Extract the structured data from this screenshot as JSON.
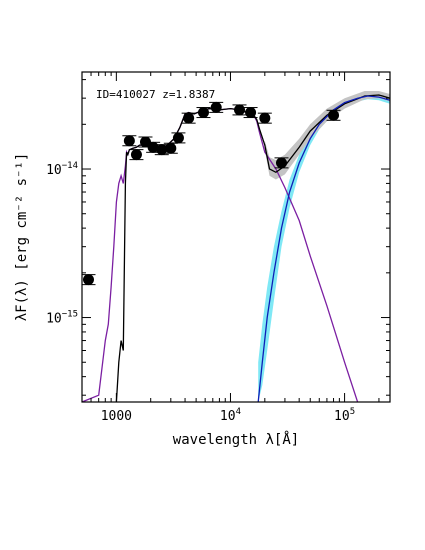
{
  "chart_data": {
    "type": "scatter",
    "annotation": "ID=410027 z=1.8387",
    "xlabel": "wavelength λ[Å]",
    "ylabel": "λF(λ) [erg cm⁻² s⁻¹]",
    "xscale": "log",
    "yscale": "log",
    "xlim": [
      500,
      250000
    ],
    "ylim": [
      2.7e-16,
      4.5e-14
    ],
    "x_ticks": [
      {
        "value": 1000,
        "label": "1000"
      },
      {
        "value": 10000,
        "label": "10^4"
      },
      {
        "value": 100000,
        "label": "10^5"
      }
    ],
    "y_ticks": [
      {
        "value": 1e-14,
        "label": "10^-14"
      },
      {
        "value": 1e-15,
        "label": "10^-15"
      }
    ],
    "points": [
      {
        "x": 570,
        "y": 1.8e-15
      },
      {
        "x": 1300,
        "y": 1.55e-14
      },
      {
        "x": 1500,
        "y": 1.25e-14
      },
      {
        "x": 1800,
        "y": 1.52e-14
      },
      {
        "x": 2100,
        "y": 1.4e-14
      },
      {
        "x": 2500,
        "y": 1.35e-14
      },
      {
        "x": 3000,
        "y": 1.38e-14
      },
      {
        "x": 3500,
        "y": 1.62e-14
      },
      {
        "x": 4300,
        "y": 2.2e-14
      },
      {
        "x": 5800,
        "y": 2.4e-14
      },
      {
        "x": 7500,
        "y": 2.6e-14
      },
      {
        "x": 12000,
        "y": 2.5e-14
      },
      {
        "x": 15000,
        "y": 2.4e-14
      },
      {
        "x": 20000,
        "y": 2.2e-14
      },
      {
        "x": 28000,
        "y": 1.1e-14
      },
      {
        "x": 80000,
        "y": 2.3e-14
      }
    ],
    "series": [
      {
        "color": "#7b1fa2",
        "x": [
          500,
          700,
          800,
          850,
          900,
          950,
          1000,
          1050,
          1100,
          1150,
          1200,
          1230,
          1260,
          1300,
          1400,
          1500,
          1600,
          1800,
          2000,
          2200,
          2500,
          2800,
          3200,
          3600,
          4000,
          4300,
          4800,
          5500,
          6500,
          8000,
          10000,
          12000,
          14000,
          16000,
          17000,
          18000,
          20000,
          25000,
          30000,
          40000,
          50000,
          70000,
          100000,
          130000
        ],
        "y": [
          2.7e-16,
          3e-16,
          7e-16,
          9e-16,
          1.6e-15,
          3e-15,
          6e-15,
          8e-15,
          9e-15,
          8e-15,
          1.05e-14,
          1.3e-14,
          1.25e-14,
          1.35e-14,
          1.38e-14,
          1.4e-14,
          1.45e-14,
          1.45e-14,
          1.38e-14,
          1.35e-14,
          1.38e-14,
          1.45e-14,
          1.6e-14,
          1.9e-14,
          2.35e-14,
          2.4e-14,
          2.35e-14,
          2.45e-14,
          2.55e-14,
          2.5e-14,
          2.55e-14,
          2.5e-14,
          2.4e-14,
          2.3e-14,
          2.1e-14,
          1.75e-14,
          1.3e-14,
          1e-14,
          7.5e-15,
          4.5e-15,
          2.6e-15,
          1.2e-15,
          5e-16,
          2.7e-16
        ]
      },
      {
        "color": "#000000",
        "x": [
          1000,
          1050,
          1100,
          1150,
          1200,
          1230,
          1260,
          1300,
          1400,
          1500,
          1600,
          1800,
          2000,
          2200,
          2500,
          2800,
          3200,
          3600,
          4000,
          4300,
          4800,
          5500,
          6500,
          8000,
          10000,
          12000,
          14000,
          16000,
          17000,
          18000,
          20000,
          22000,
          25000,
          30000,
          40000,
          50000,
          70000,
          100000,
          150000,
          200000,
          250000
        ],
        "y": [
          2.7e-16,
          5e-16,
          7e-16,
          6e-16,
          8e-15,
          1.3e-14,
          1.25e-14,
          1.35e-14,
          1.38e-14,
          1.4e-14,
          1.45e-14,
          1.45e-14,
          1.38e-14,
          1.35e-14,
          1.38e-14,
          1.45e-14,
          1.6e-14,
          1.9e-14,
          2.35e-14,
          2.4e-14,
          2.35e-14,
          2.45e-14,
          2.55e-14,
          2.5e-14,
          2.55e-14,
          2.5e-14,
          2.4e-14,
          2.3e-14,
          2.15e-14,
          1.85e-14,
          1.45e-14,
          1e-14,
          9.5e-15,
          1.05e-14,
          1.4e-14,
          1.8e-14,
          2.3e-14,
          2.75e-14,
          3.1e-14,
          3.15e-14,
          3e-14
        ]
      },
      {
        "color": "#0d1fb8",
        "x": [
          17500,
          19000,
          21000,
          24000,
          28000,
          33000,
          40000,
          50000,
          60000,
          80000,
          100000,
          130000,
          160000,
          200000,
          250000
        ],
        "y": [
          2.7e-16,
          5e-16,
          1e-15,
          2e-15,
          4e-15,
          7e-15,
          1.1e-14,
          1.6e-14,
          2e-14,
          2.5e-14,
          2.8e-14,
          3e-14,
          3.1e-14,
          3.05e-14,
          2.9e-14
        ]
      }
    ],
    "bands": [
      {
        "color": "#7fe8f5",
        "x": [
          17500,
          19000,
          21000,
          24000,
          28000,
          33000,
          40000,
          50000,
          60000,
          80000,
          100000,
          130000,
          160000,
          200000,
          250000
        ],
        "upper": [
          5e-16,
          9e-16,
          1.6e-15,
          3e-15,
          5.2e-15,
          8.5e-15,
          1.25e-14,
          1.75e-14,
          2.15e-14,
          2.65e-14,
          2.95e-14,
          3.2e-14,
          3.3e-14,
          3.25e-14,
          3.1e-14
        ],
        "lower": [
          2.7e-16,
          3.5e-16,
          6e-16,
          1.3e-15,
          3e-15,
          5.5e-15,
          9.5e-15,
          1.45e-14,
          1.85e-14,
          2.35e-14,
          2.65e-14,
          2.85e-14,
          2.95e-14,
          2.9e-14,
          2.75e-14
        ]
      },
      {
        "color": "#c4c4c4",
        "x": [
          20000,
          22000,
          25000,
          30000,
          40000,
          50000,
          70000,
          100000,
          150000,
          200000,
          250000
        ],
        "upper": [
          1.55e-14,
          1.2e-14,
          1.15e-14,
          1.25e-14,
          1.6e-14,
          2e-14,
          2.55e-14,
          3e-14,
          3.35e-14,
          3.35e-14,
          3.2e-14
        ],
        "lower": [
          1.35e-14,
          9e-15,
          8.5e-15,
          9.2e-15,
          1.25e-14,
          1.6e-14,
          2.1e-14,
          2.55e-14,
          2.95e-14,
          3e-14,
          2.85e-14
        ]
      }
    ]
  }
}
